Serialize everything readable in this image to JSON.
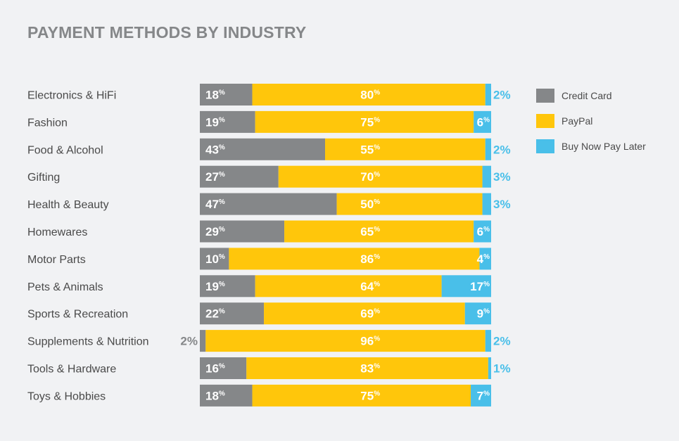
{
  "chart_data": {
    "type": "bar",
    "orientation": "horizontal",
    "stacked": true,
    "normalized": true,
    "title": "PAYMENT METHODS BY INDUSTRY",
    "xlabel": "",
    "ylabel": "",
    "xlim": [
      0,
      100
    ],
    "grid": false,
    "legend_position": "top-right",
    "categories": [
      "Electronics & HiFi",
      "Fashion",
      "Food & Alcohol",
      "Gifting",
      "Health & Beauty",
      "Homewares",
      "Motor Parts",
      "Pets & Animals",
      "Sports & Recreation",
      "Supplements & Nutrition",
      "Tools & Hardware",
      "Toys & Hobbies"
    ],
    "series": [
      {
        "name": "Credit Card",
        "color": "#858789",
        "values": [
          18,
          19,
          43,
          27,
          47,
          29,
          10,
          19,
          22,
          2,
          16,
          18
        ]
      },
      {
        "name": "PayPal",
        "color": "#ffc60b",
        "values": [
          80,
          75,
          55,
          70,
          50,
          65,
          86,
          64,
          69,
          96,
          83,
          75
        ]
      },
      {
        "name": "Buy Now Pay Later",
        "color": "#49bfe9",
        "values": [
          2,
          6,
          2,
          3,
          3,
          6,
          4,
          17,
          9,
          2,
          1,
          7
        ]
      }
    ],
    "value_suffix": "%"
  }
}
